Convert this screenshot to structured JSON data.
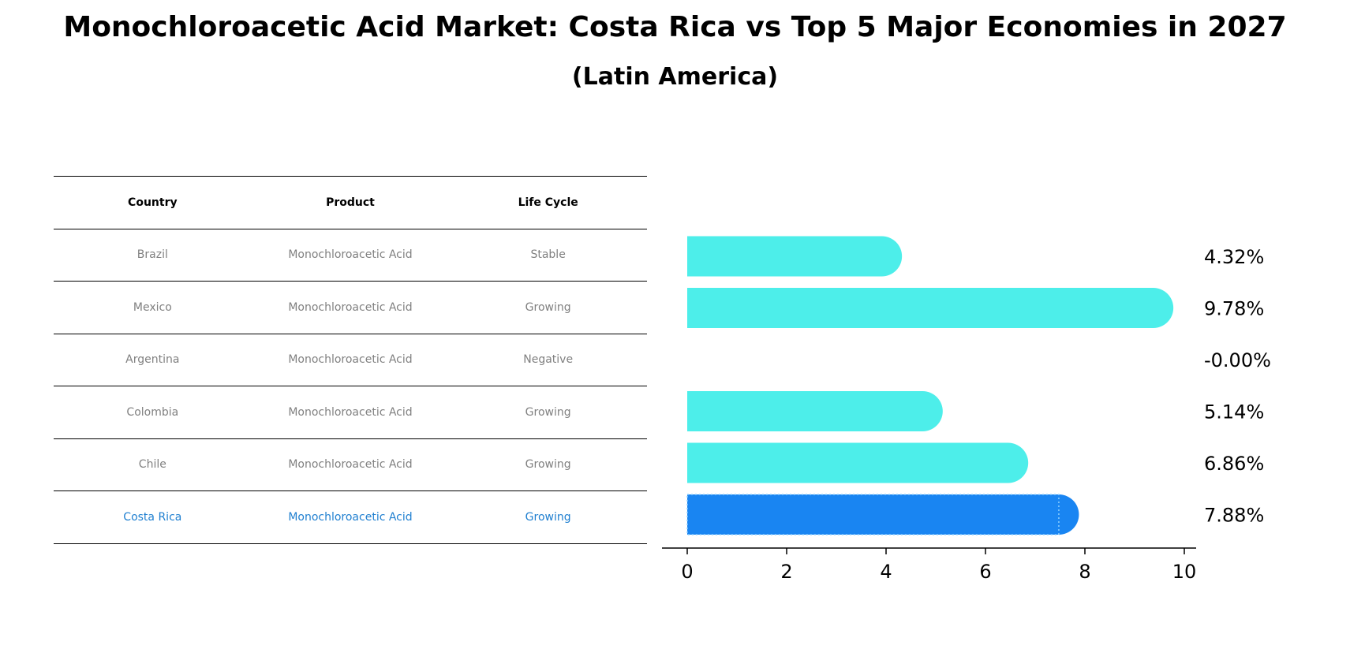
{
  "title": "Monochloroacetic Acid Market: Costa Rica vs Top 5 Major Economies in 2027",
  "subtitle": "(Latin America)",
  "table": {
    "headers": [
      "Country",
      "Product",
      "Life Cycle"
    ],
    "rows": [
      {
        "country": "Brazil",
        "product": "Monochloroacetic Acid",
        "life_cycle": "Stable"
      },
      {
        "country": "Mexico",
        "product": "Monochloroacetic Acid",
        "life_cycle": "Growing"
      },
      {
        "country": "Argentina",
        "product": "Monochloroacetic Acid",
        "life_cycle": "Negative"
      },
      {
        "country": "Colombia",
        "product": "Monochloroacetic Acid",
        "life_cycle": "Growing"
      },
      {
        "country": "Chile",
        "product": "Monochloroacetic Acid",
        "life_cycle": "Growing"
      },
      {
        "country": "Costa Rica",
        "product": "Monochloroacetic Acid",
        "life_cycle": "Growing"
      }
    ],
    "highlight_row": 5
  },
  "chart_data": {
    "type": "bar",
    "orientation": "horizontal",
    "categories": [
      "Brazil",
      "Mexico",
      "Argentina",
      "Colombia",
      "Chile",
      "Costa Rica"
    ],
    "values": [
      4.32,
      9.78,
      -0.0,
      5.14,
      6.86,
      7.88
    ],
    "value_labels": [
      "4.32%",
      "9.78%",
      "-0.00%",
      "5.14%",
      "6.86%",
      "7.88%"
    ],
    "xlim": [
      -0.5,
      10.3
    ],
    "xticks": [
      0,
      2,
      4,
      6,
      8,
      10
    ],
    "highlight_index": 5,
    "colors": {
      "default": "#4deeea",
      "highlight": "#1985f2"
    },
    "grid": false
  }
}
